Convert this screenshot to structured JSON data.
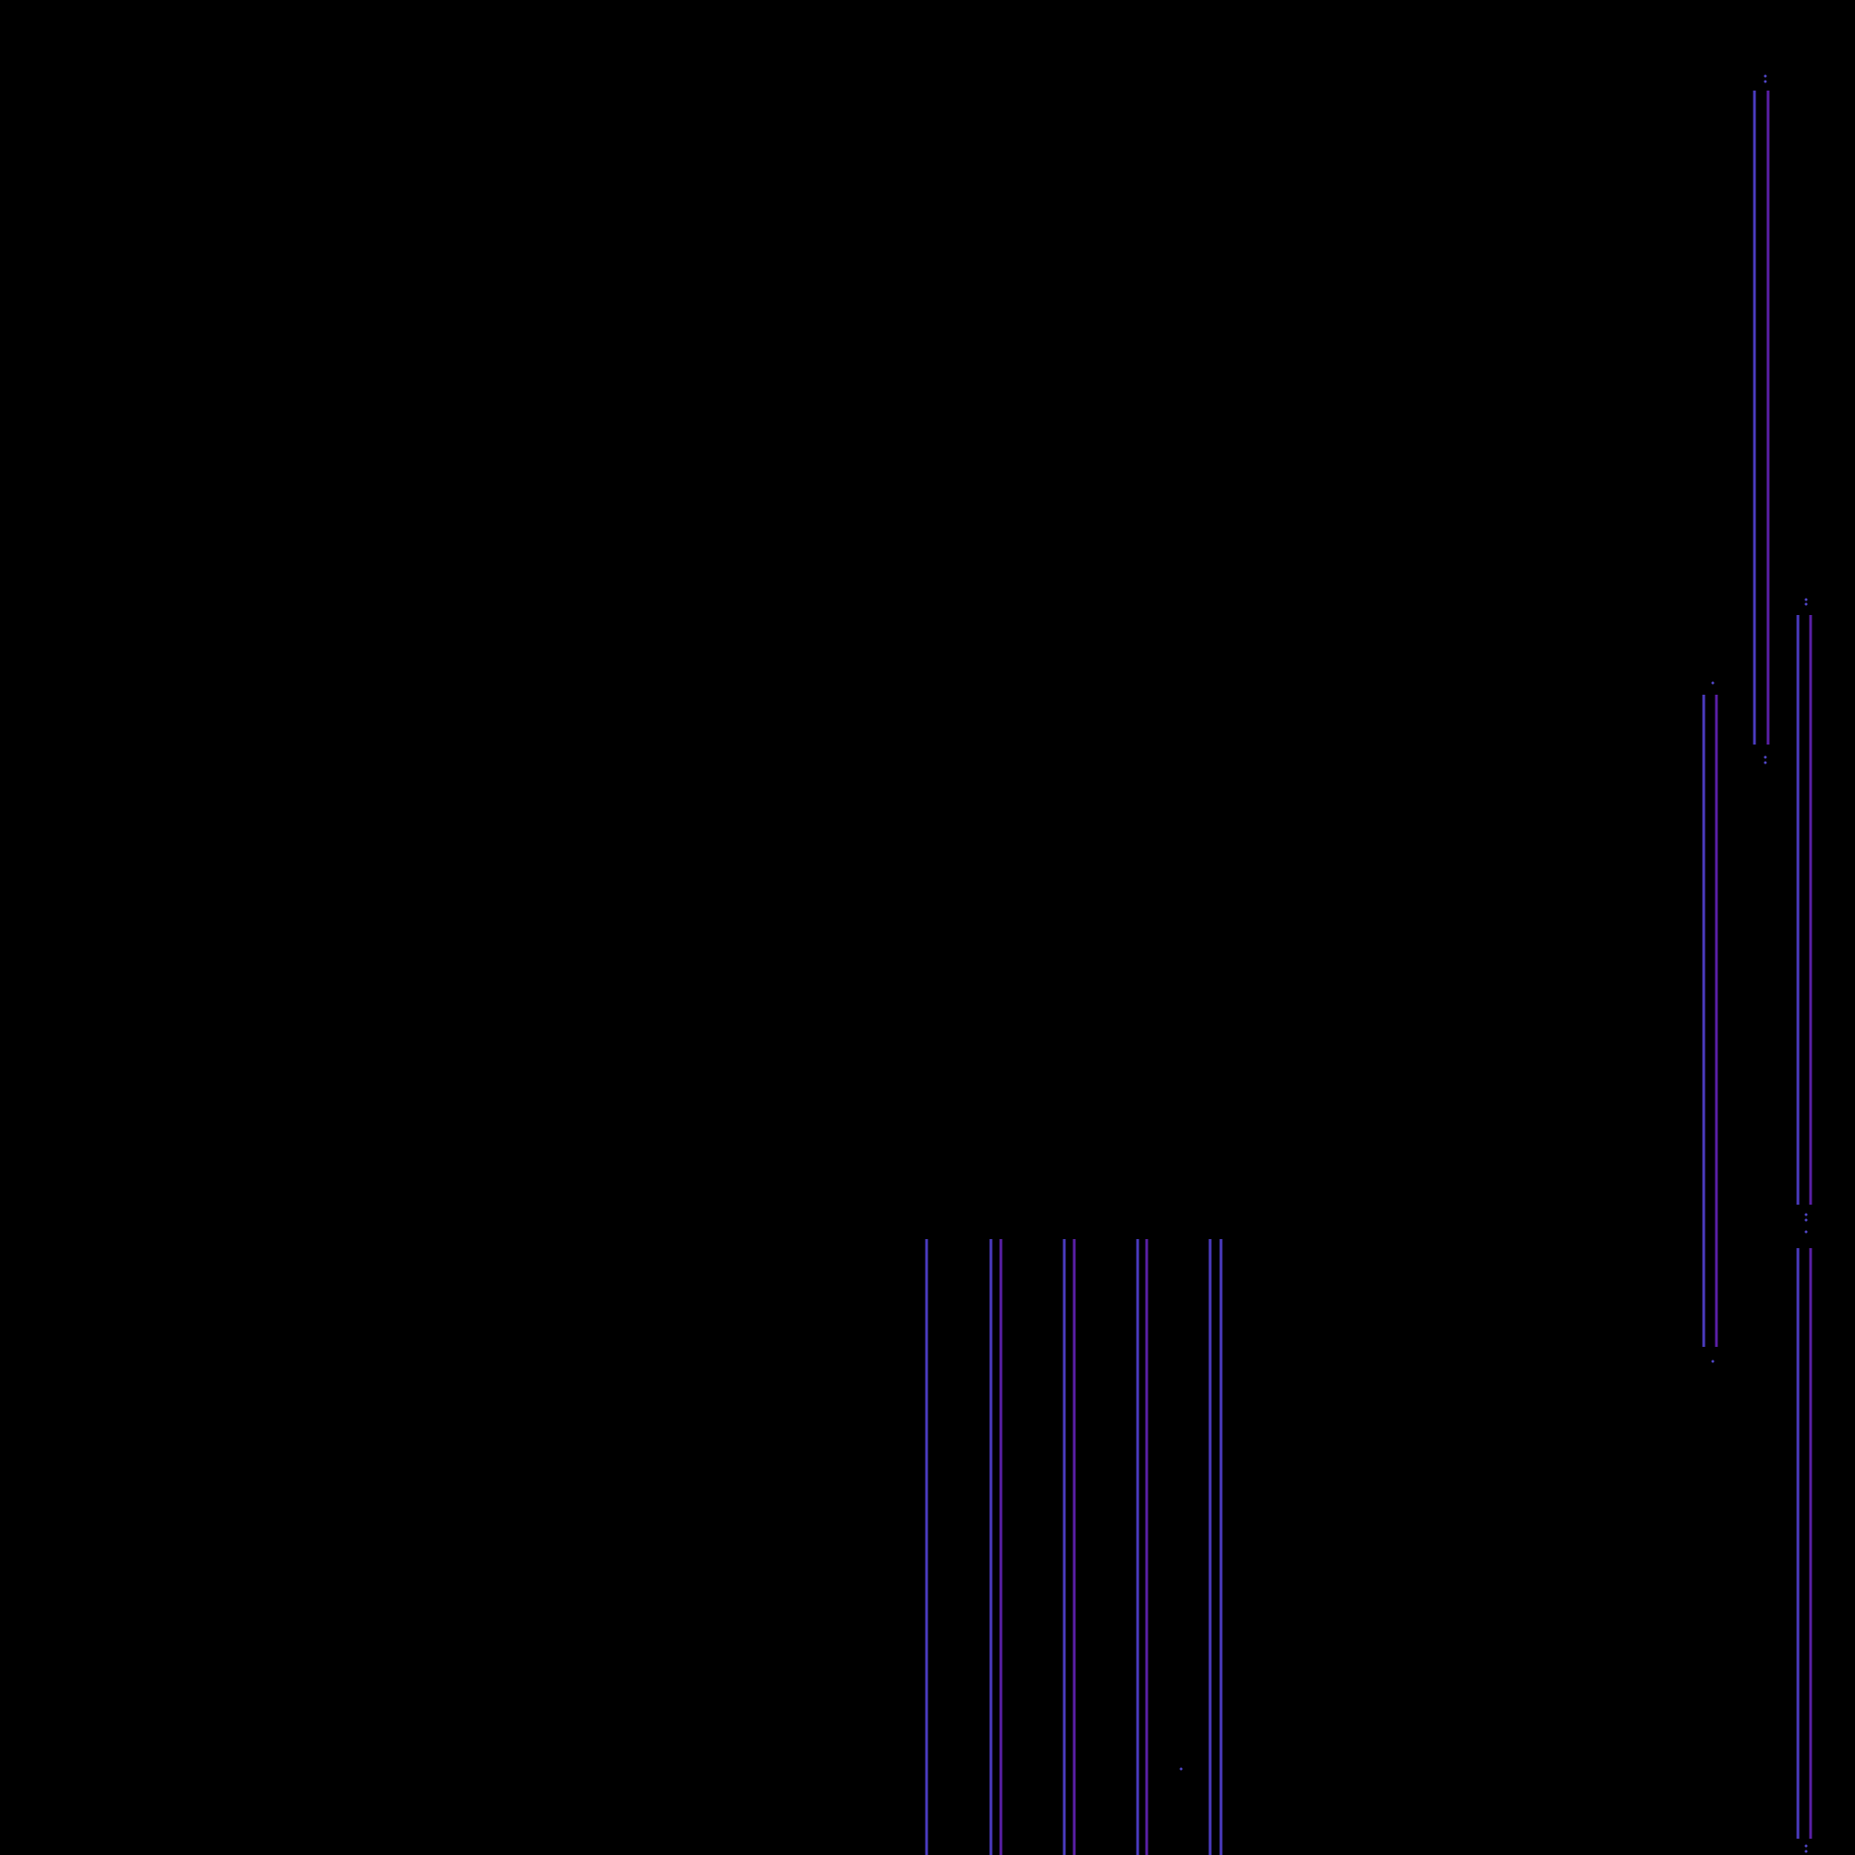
{
  "background_color": "#000000",
  "line_colors": {
    "blue_violet": "#4b3bbf",
    "purple": "#5a1fa6",
    "dot": "#5146c8"
  }
}
